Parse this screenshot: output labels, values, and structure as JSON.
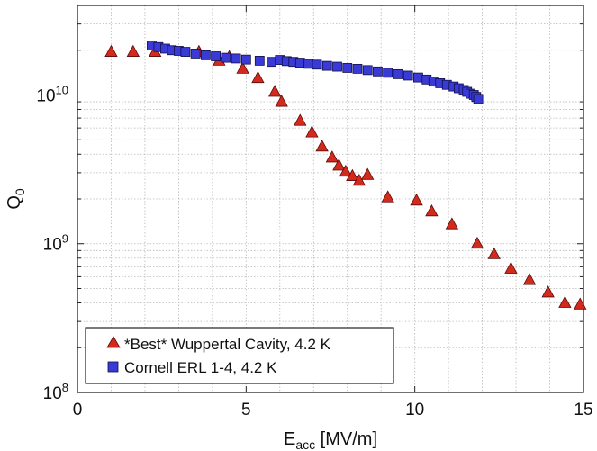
{
  "chart_data": {
    "type": "scatter",
    "xlabel_main": "E",
    "xlabel_sub": "acc",
    "xlabel_rest": " [MV/m]",
    "ylabel_main": "Q",
    "ylabel_sub": "0",
    "xlim": [
      0,
      15
    ],
    "ylim": [
      100000000,
      40000000000
    ],
    "yscale": "log",
    "grid": true,
    "legend_position": "bottom-left",
    "x_ticks": [
      {
        "value": 0,
        "label": "0"
      },
      {
        "value": 5,
        "label": "5"
      },
      {
        "value": 10,
        "label": "10"
      },
      {
        "value": 15,
        "label": "15"
      }
    ],
    "y_ticks": [
      {
        "value": 100000000,
        "base": "10",
        "exp": "8"
      },
      {
        "value": 1000000000,
        "base": "10",
        "exp": "9"
      },
      {
        "value": 10000000000,
        "base": "10",
        "exp": "10"
      }
    ],
    "series": [
      {
        "name": "*Best* Wuppertal Cavity, 4.2 K",
        "marker": "triangle",
        "color": "#d42a1e",
        "edge": "#5a0a06",
        "x": [
          1.0,
          1.65,
          2.3,
          3.6,
          4.2,
          4.5,
          4.9,
          5.35,
          5.85,
          6.05,
          6.6,
          6.95,
          7.25,
          7.55,
          7.75,
          7.95,
          8.15,
          8.35,
          8.6,
          9.2,
          10.05,
          10.5,
          11.1,
          11.85,
          12.35,
          12.85,
          13.4,
          13.95,
          14.45,
          14.9
        ],
        "y": [
          19500000000,
          19500000000,
          19500000000,
          19500000000,
          17000000000,
          18000000000,
          15000000000,
          13000000000,
          10500000000,
          9000000000,
          6700000000,
          5600000000,
          4500000000,
          3800000000,
          3350000000,
          3050000000,
          2850000000,
          2650000000,
          2900000000,
          2050000000,
          1950000000,
          1650000000,
          1350000000,
          1000000000,
          850000000,
          680000000,
          570000000,
          470000000,
          400000000,
          390000000
        ]
      },
      {
        "name": "Cornell ERL 1-4, 4.2 K",
        "marker": "square",
        "color": "#3a3ad6",
        "edge": "#10104a",
        "x": [
          2.2,
          2.4,
          2.6,
          2.8,
          3.0,
          3.2,
          3.5,
          3.8,
          4.1,
          4.4,
          4.7,
          5.0,
          5.4,
          5.75,
          6.0,
          6.2,
          6.4,
          6.6,
          6.85,
          7.1,
          7.4,
          7.7,
          8.0,
          8.3,
          8.6,
          8.9,
          9.2,
          9.5,
          9.8,
          10.1,
          10.35,
          10.55,
          10.75,
          10.95,
          11.15,
          11.3,
          11.45,
          11.55,
          11.65,
          11.75,
          11.82,
          11.88
        ],
        "y": [
          21500000000,
          21000000000,
          20500000000,
          20000000000,
          19800000000,
          19500000000,
          19000000000,
          18500000000,
          18200000000,
          17800000000,
          17600000000,
          17300000000,
          17000000000,
          16700000000,
          17200000000,
          16900000000,
          16700000000,
          16500000000,
          16200000000,
          16000000000,
          15700000000,
          15500000000,
          15200000000,
          15000000000,
          14700000000,
          14400000000,
          14100000000,
          13800000000,
          13500000000,
          13100000000,
          12700000000,
          12300000000,
          12000000000,
          11700000000,
          11400000000,
          11100000000,
          10800000000,
          10500000000,
          10200000000,
          10000000000,
          9700000000,
          9400000000
        ]
      }
    ]
  }
}
